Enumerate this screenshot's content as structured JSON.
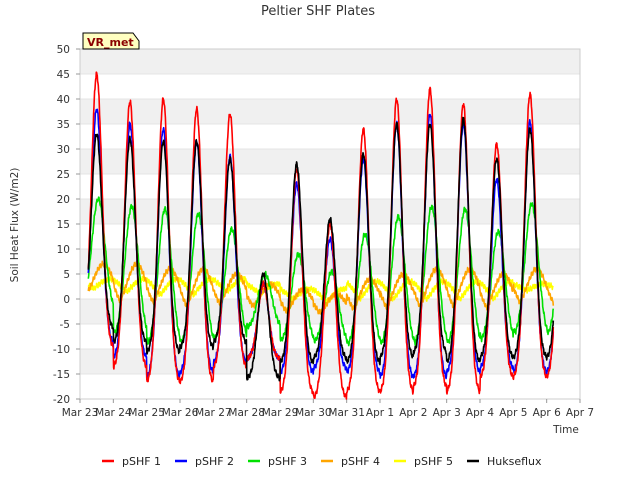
{
  "chart_data": {
    "type": "line",
    "title": "Peltier SHF Plates",
    "xlabel": "Time",
    "ylabel": "Soil Heat Flux (W/m2)",
    "ylim": [
      -20,
      50
    ],
    "yticks": [
      -20,
      -15,
      -10,
      -5,
      0,
      5,
      10,
      15,
      20,
      25,
      30,
      35,
      40,
      45,
      50
    ],
    "xlim": [
      0,
      15
    ],
    "xticks": [
      {
        "value": 0,
        "label": "Mar 23"
      },
      {
        "value": 1,
        "label": "Mar 24"
      },
      {
        "value": 2,
        "label": "Mar 25"
      },
      {
        "value": 3,
        "label": "Mar 26"
      },
      {
        "value": 4,
        "label": "Mar 27"
      },
      {
        "value": 5,
        "label": "Mar 28"
      },
      {
        "value": 6,
        "label": "Mar 29"
      },
      {
        "value": 7,
        "label": "Mar 30"
      },
      {
        "value": 8,
        "label": "Mar 31"
      },
      {
        "value": 9,
        "label": "Apr 1"
      },
      {
        "value": 10,
        "label": "Apr 2"
      },
      {
        "value": 11,
        "label": "Apr 3"
      },
      {
        "value": 12,
        "label": "Apr 4"
      },
      {
        "value": 13,
        "label": "Apr 5"
      },
      {
        "value": 14,
        "label": "Apr 6"
      },
      {
        "value": 15,
        "label": "Apr 7"
      }
    ],
    "x_start": 0.25,
    "x_end": 14.2,
    "grid": "horizontal bands",
    "legend_position": "bottom",
    "site_badge": "VR_met",
    "daily_peak_time": 0.5,
    "series": [
      {
        "name": "pSHF 1",
        "color": "#ff0000",
        "lag": 0.0,
        "width": 0.16,
        "peaks": [
          45,
          39.5,
          40,
          38,
          37,
          3,
          26,
          15,
          34,
          40,
          42,
          39,
          31,
          41
        ],
        "troughs": [
          -10,
          -14,
          -17,
          -17,
          -14,
          -12,
          -19,
          -20,
          -19,
          -19,
          -18,
          -19,
          -16,
          -16
        ]
      },
      {
        "name": "pSHF 2",
        "color": "#0000ff",
        "lag": 0.0,
        "width": 0.16,
        "peaks": [
          38,
          35,
          34,
          31.5,
          28.5,
          3,
          23,
          12,
          28,
          35,
          37,
          35,
          24,
          35.5
        ],
        "troughs": [
          -9,
          -12,
          -16,
          -15,
          -13,
          -12,
          -15,
          -14,
          -15,
          -16,
          -16,
          -15,
          -14,
          -15
        ]
      },
      {
        "name": "pSHF 3",
        "color": "#00e000",
        "lag": 0.05,
        "width": 0.2,
        "peaks": [
          20,
          18.5,
          18,
          17,
          14,
          5,
          9,
          5.5,
          13,
          16.5,
          18.5,
          18,
          13.5,
          19
        ],
        "troughs": [
          -3,
          -8,
          -10,
          -10,
          -9,
          -6,
          -9,
          -9,
          -10,
          -10,
          -10,
          -10,
          -9,
          -8
        ]
      },
      {
        "name": "pSHF 4",
        "color": "#ffa500",
        "lag": 0.2,
        "width": 0.3,
        "peaks": [
          7,
          7,
          6,
          6,
          5,
          3,
          2,
          1,
          4,
          5,
          6,
          6,
          5,
          6
        ],
        "troughs": [
          -1,
          -3,
          -3,
          -4,
          -3,
          -3,
          -4,
          -4,
          -4,
          -4,
          -4,
          -4,
          -4,
          -3
        ]
      },
      {
        "name": "pSHF 5",
        "color": "#ffff00",
        "lag": 0.4,
        "width": 0.35,
        "peaks": [
          4,
          4,
          4,
          4,
          4,
          3,
          2,
          2,
          3.5,
          3.5,
          3.5,
          3.5,
          3.5,
          3
        ],
        "troughs": [
          1,
          0,
          -1,
          -1,
          0,
          0,
          -1,
          -2,
          -2,
          -2,
          -2,
          -2,
          -2,
          1
        ]
      },
      {
        "name": "Hukseflux",
        "color": "#000000",
        "lag": 0.0,
        "width": 0.16,
        "peaks": [
          33,
          32,
          31.5,
          31.5,
          28,
          5,
          27,
          16,
          29,
          35,
          35,
          36,
          28,
          34
        ],
        "troughs": [
          -6,
          -9,
          -11,
          -10,
          -9,
          -16,
          -13,
          -12,
          -13,
          -12,
          -11,
          -13,
          -12,
          -12
        ]
      }
    ]
  }
}
